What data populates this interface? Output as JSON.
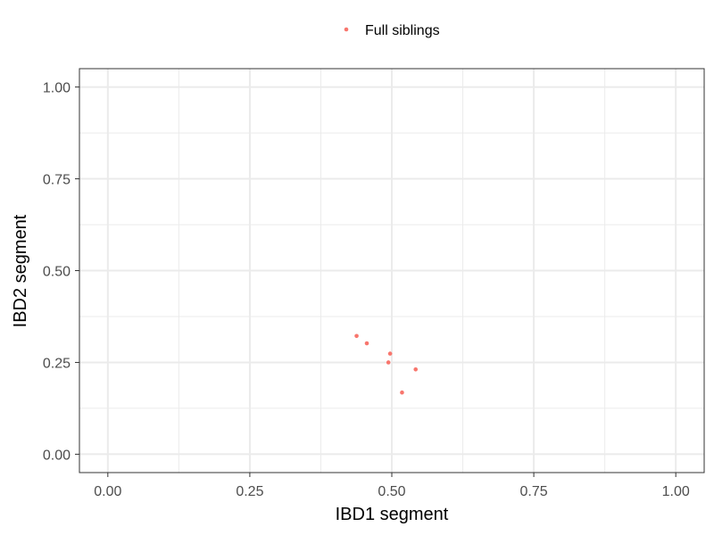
{
  "chart_data": {
    "type": "scatter",
    "xlabel": "IBD1 segment",
    "ylabel": "IBD2 segment",
    "xlim": [
      -0.05,
      1.05
    ],
    "ylim": [
      -0.05,
      1.05
    ],
    "x_ticks": [
      "0.00",
      "0.25",
      "0.50",
      "0.75",
      "1.00"
    ],
    "y_ticks": [
      "0.00",
      "0.25",
      "0.50",
      "0.75",
      "1.00"
    ],
    "grid": true,
    "legend_position": "top",
    "series": [
      {
        "name": "Full siblings",
        "color": "#F8766D",
        "points": [
          {
            "x": 0.438,
            "y": 0.322
          },
          {
            "x": 0.456,
            "y": 0.302
          },
          {
            "x": 0.497,
            "y": 0.274
          },
          {
            "x": 0.494,
            "y": 0.25
          },
          {
            "x": 0.542,
            "y": 0.231
          },
          {
            "x": 0.518,
            "y": 0.168
          }
        ]
      }
    ]
  }
}
